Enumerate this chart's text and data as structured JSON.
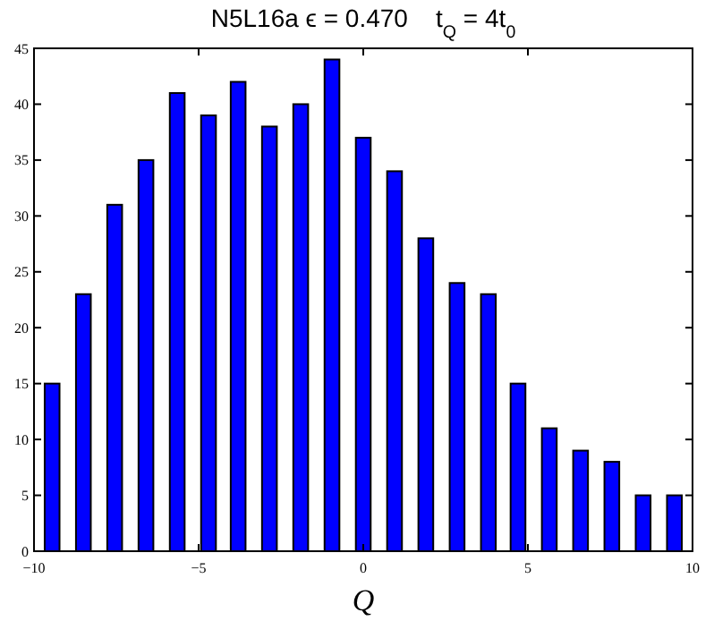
{
  "chart_data": {
    "type": "bar",
    "title": "N5L16a ϵ = 0.470    t$_{Q}$ = 4t$_{0}$",
    "xlabel": "Q",
    "x": [
      -9.45,
      -8.5,
      -7.55,
      -6.6,
      -5.65,
      -4.7,
      -3.8,
      -2.85,
      -1.9,
      -0.95,
      0,
      0.95,
      1.9,
      2.85,
      3.8,
      4.7,
      5.65,
      6.6,
      7.55,
      8.5,
      9.45
    ],
    "values": [
      15,
      23,
      31,
      35,
      41,
      39,
      42,
      38,
      40,
      44,
      37,
      34,
      28,
      24,
      23,
      15,
      11,
      9,
      8,
      5,
      5
    ],
    "color": "#0000ff",
    "xlim": [
      -10,
      10
    ],
    "xticks": [
      {
        "value": -10,
        "label": "−10"
      },
      {
        "value": -5,
        "label": "−5"
      },
      0,
      5,
      10
    ],
    "ylim": [
      0,
      45
    ],
    "yticks": [
      0,
      5,
      10,
      15,
      20,
      25,
      30,
      35,
      40,
      45
    ],
    "grid": false
  }
}
